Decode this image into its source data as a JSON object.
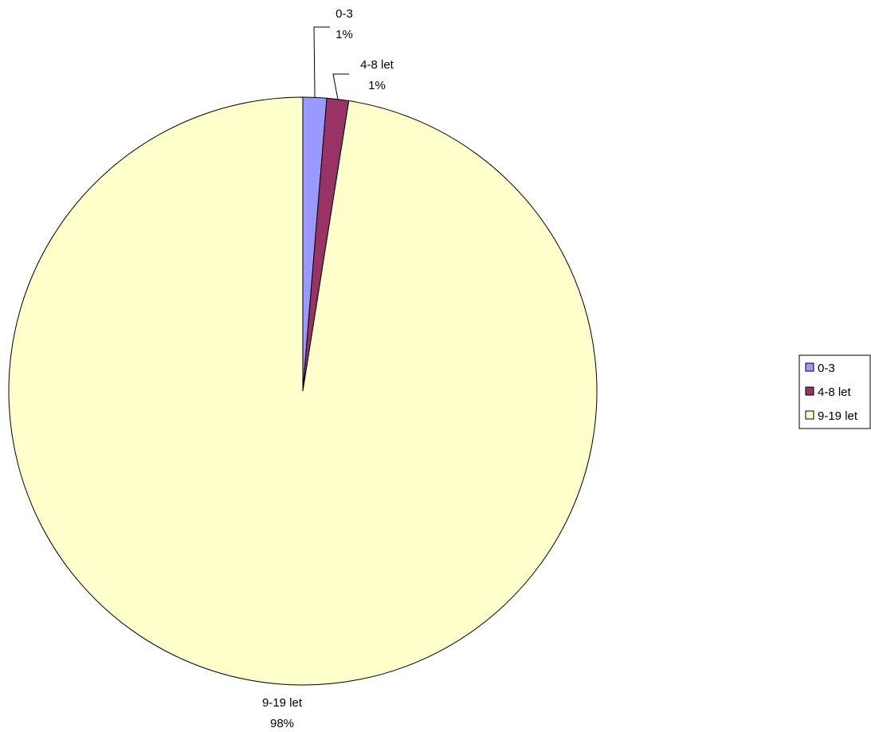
{
  "chart_data": {
    "type": "pie",
    "categories": [
      "0-3",
      "4-8 let",
      "9-19 let"
    ],
    "values": [
      1.3,
      1.2,
      97.5
    ],
    "label_percents": [
      "1%",
      "1%",
      "98%"
    ],
    "colors": [
      "#9999ff",
      "#993366",
      "#ffffcc"
    ],
    "start_angle": "12 o'clock",
    "direction": "clockwise",
    "legend_position": "right"
  }
}
